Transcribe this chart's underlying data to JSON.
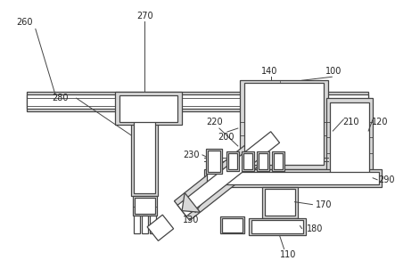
{
  "bg_color": "#ffffff",
  "line_color": "#444444",
  "fill_gray": "#d8d8d8",
  "fill_white": "#ffffff",
  "label_color": "#222222",
  "lw": 0.9
}
